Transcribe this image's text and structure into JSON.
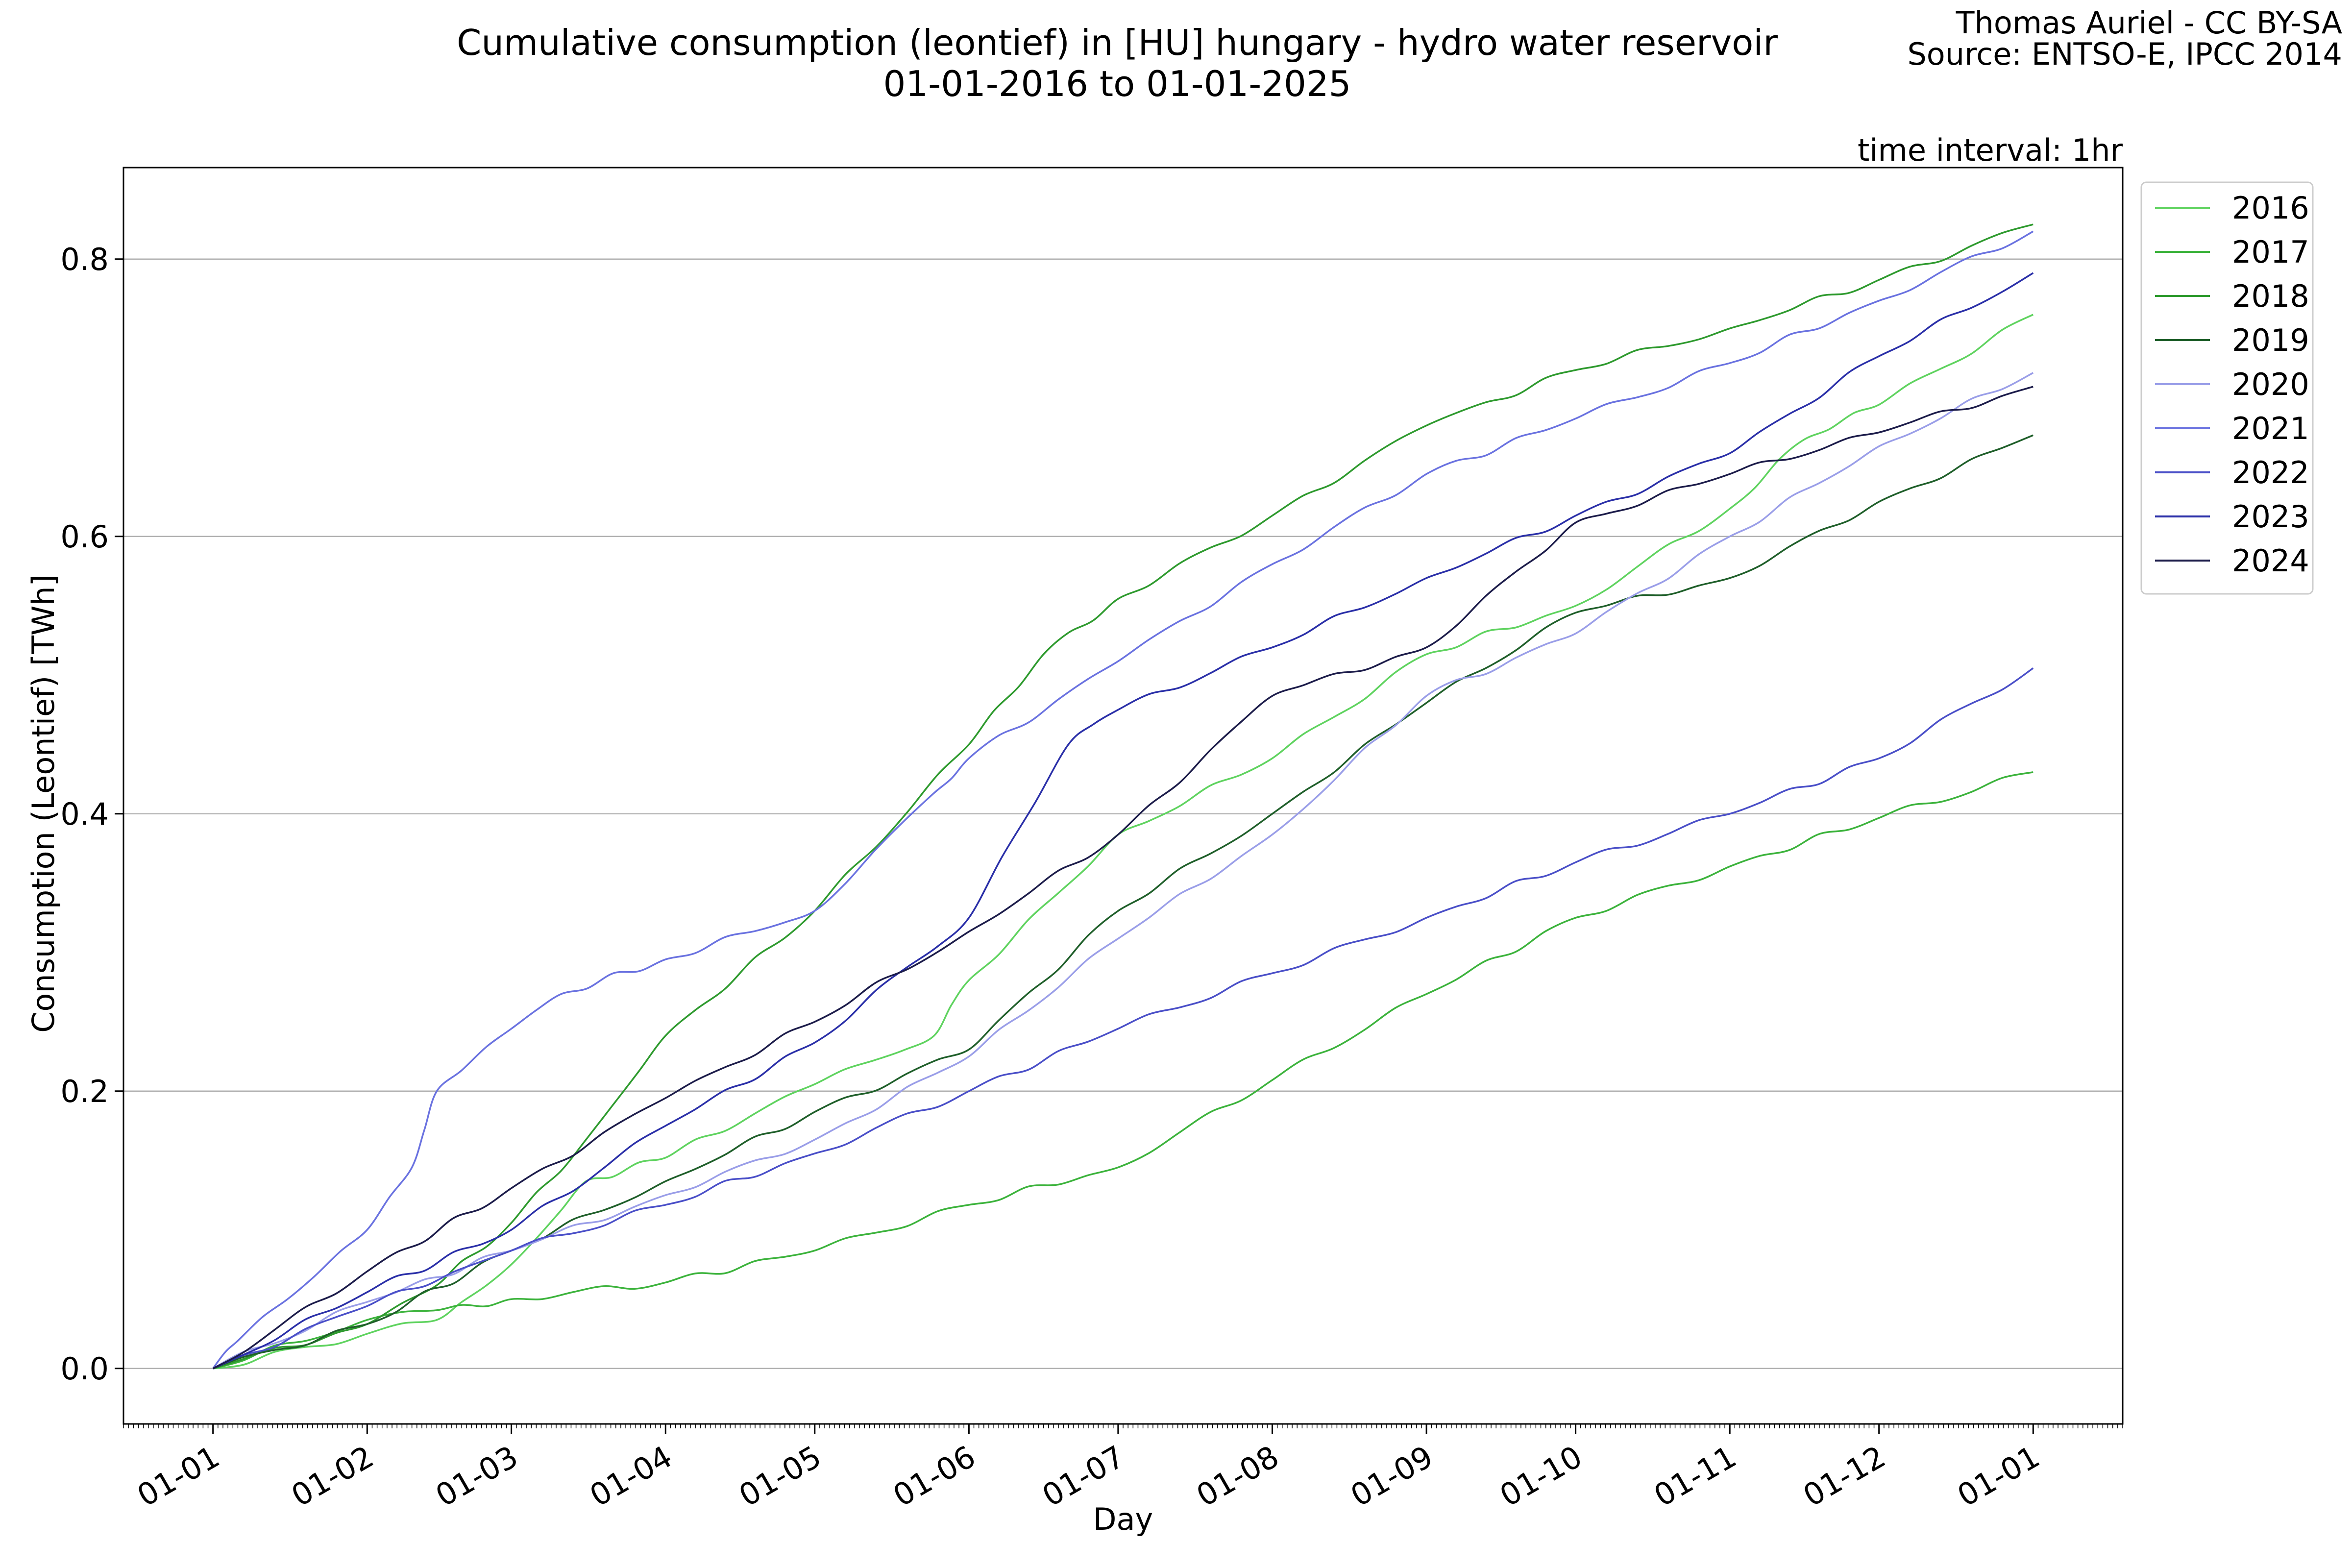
{
  "header": {
    "title_line1": "Cumulative consumption (leontief) in [HU] hungary - hydro water reservoir",
    "title_line2": "01-01-2016 to 01-01-2025",
    "credit_line1": "Thomas Auriel - CC BY-SA",
    "credit_line2": "Source: ENTSO-E, IPCC 2014",
    "interval": "time interval: 1hr"
  },
  "chart_data": {
    "type": "line",
    "xlabel": "Day",
    "ylabel": "Consumption (Leontief) [TWh]",
    "x_ticks": [
      "01-01",
      "01-02",
      "01-03",
      "01-04",
      "01-05",
      "01-06",
      "01-07",
      "01-08",
      "01-09",
      "01-10",
      "01-11",
      "01-12",
      "01-01"
    ],
    "x_tick_days": [
      0,
      31,
      60,
      91,
      121,
      152,
      182,
      213,
      244,
      274,
      305,
      335,
      366
    ],
    "xlim": [
      -18,
      384
    ],
    "y_ticks": [
      0.0,
      0.2,
      0.4,
      0.6,
      0.8
    ],
    "y_tick_labels": [
      "0.0",
      "0.2",
      "0.4",
      "0.6",
      "0.8"
    ],
    "ylim": [
      -0.04,
      0.866
    ],
    "grid": "horizontal",
    "legend_position": "outside-top-right",
    "series": [
      {
        "name": "2016",
        "color": "#5fd35f",
        "days": [
          0,
          31,
          45,
          60,
          75,
          91,
          121,
          145,
          152,
          182,
          213,
          244,
          274,
          305,
          320,
          335,
          366
        ],
        "values": [
          0.0,
          0.025,
          0.035,
          0.075,
          0.135,
          0.152,
          0.205,
          0.24,
          0.28,
          0.385,
          0.44,
          0.515,
          0.55,
          0.62,
          0.67,
          0.695,
          0.76
        ]
      },
      {
        "name": "2017",
        "color": "#3cb33c",
        "days": [
          0,
          31,
          45,
          60,
          91,
          121,
          152,
          182,
          213,
          244,
          274,
          305,
          335,
          366
        ],
        "values": [
          0.0,
          0.035,
          0.042,
          0.05,
          0.062,
          0.085,
          0.118,
          0.145,
          0.208,
          0.27,
          0.325,
          0.362,
          0.397,
          0.43
        ]
      },
      {
        "name": "2018",
        "color": "#2e9a2e",
        "days": [
          0,
          31,
          45,
          60,
          75,
          91,
          121,
          152,
          167,
          182,
          213,
          244,
          274,
          305,
          335,
          366
        ],
        "values": [
          0.0,
          0.032,
          0.06,
          0.105,
          0.165,
          0.24,
          0.33,
          0.45,
          0.515,
          0.555,
          0.615,
          0.68,
          0.72,
          0.75,
          0.785,
          0.825
        ]
      },
      {
        "name": "2019",
        "color": "#1f5f2a",
        "days": [
          0,
          31,
          60,
          91,
          121,
          152,
          182,
          213,
          244,
          274,
          305,
          335,
          366
        ],
        "values": [
          0.0,
          0.032,
          0.085,
          0.135,
          0.185,
          0.23,
          0.33,
          0.4,
          0.48,
          0.545,
          0.57,
          0.625,
          0.673
        ]
      },
      {
        "name": "2020",
        "color": "#9a9ee8",
        "days": [
          0,
          31,
          60,
          91,
          121,
          152,
          182,
          213,
          244,
          274,
          305,
          335,
          366
        ],
        "values": [
          0.0,
          0.048,
          0.085,
          0.125,
          0.165,
          0.225,
          0.31,
          0.385,
          0.485,
          0.53,
          0.6,
          0.665,
          0.718
        ]
      },
      {
        "name": "2021",
        "color": "#6a72e0",
        "days": [
          0,
          5,
          15,
          31,
          40,
          45,
          60,
          70,
          91,
          121,
          145,
          152,
          182,
          213,
          244,
          274,
          305,
          335,
          366
        ],
        "values": [
          0.0,
          0.02,
          0.05,
          0.1,
          0.145,
          0.2,
          0.245,
          0.27,
          0.295,
          0.33,
          0.415,
          0.44,
          0.51,
          0.58,
          0.645,
          0.685,
          0.725,
          0.77,
          0.82
        ]
      },
      {
        "name": "2022",
        "color": "#4a4fc8",
        "days": [
          0,
          31,
          60,
          91,
          121,
          152,
          182,
          213,
          244,
          274,
          305,
          335,
          366
        ],
        "values": [
          0.0,
          0.045,
          0.085,
          0.118,
          0.155,
          0.2,
          0.245,
          0.285,
          0.325,
          0.365,
          0.4,
          0.44,
          0.505
        ]
      },
      {
        "name": "2023",
        "color": "#2a2fa8",
        "days": [
          0,
          31,
          60,
          91,
          121,
          152,
          172,
          182,
          213,
          244,
          274,
          305,
          335,
          366
        ],
        "values": [
          0.0,
          0.055,
          0.1,
          0.175,
          0.235,
          0.325,
          0.45,
          0.475,
          0.52,
          0.57,
          0.615,
          0.66,
          0.73,
          0.79
        ]
      },
      {
        "name": "2024",
        "color": "#1c1c4a",
        "days": [
          0,
          31,
          60,
          91,
          121,
          152,
          182,
          213,
          244,
          274,
          305,
          335,
          366
        ],
        "values": [
          0.0,
          0.07,
          0.13,
          0.195,
          0.25,
          0.315,
          0.385,
          0.485,
          0.52,
          0.61,
          0.645,
          0.675,
          0.708
        ]
      }
    ]
  }
}
